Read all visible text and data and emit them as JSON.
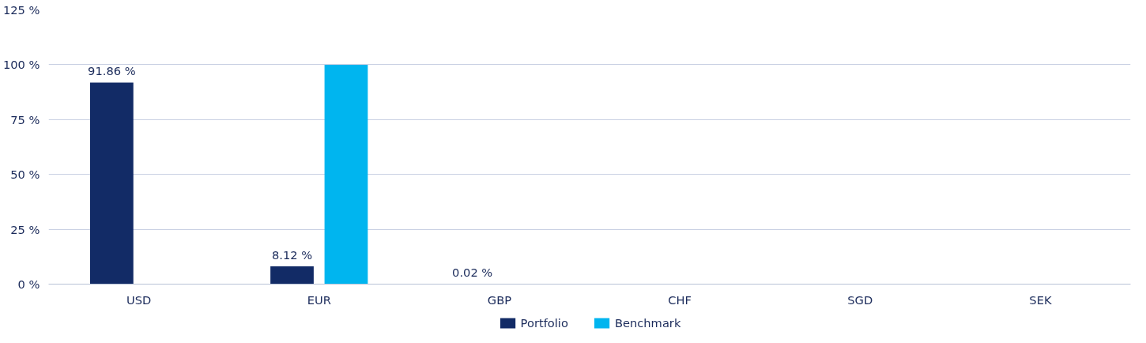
{
  "chart_data": {
    "type": "bar",
    "categories": [
      "USD",
      "EUR",
      "GBP",
      "CHF",
      "SGD",
      "SEK"
    ],
    "series": [
      {
        "name": "Portfolio",
        "color": "#122b66",
        "values": [
          91.86,
          8.12,
          0.02,
          null,
          null,
          null
        ],
        "value_labels": [
          "91.86 %",
          "8.12 %",
          "0.02 %",
          null,
          null,
          null
        ]
      },
      {
        "name": "Benchmark",
        "color": "#00b5ef",
        "values": [
          null,
          100,
          null,
          null,
          null,
          null
        ]
      }
    ],
    "ylim": [
      0,
      125
    ],
    "yticks": [
      {
        "value": 0,
        "label": "0 %"
      },
      {
        "value": 25,
        "label": "25 %"
      },
      {
        "value": 50,
        "label": "50 %"
      },
      {
        "value": 75,
        "label": "75 %"
      },
      {
        "value": 100,
        "label": "100 %"
      },
      {
        "value": 125,
        "label": "125 %"
      }
    ],
    "grid": "y",
    "legend": "bottom"
  }
}
